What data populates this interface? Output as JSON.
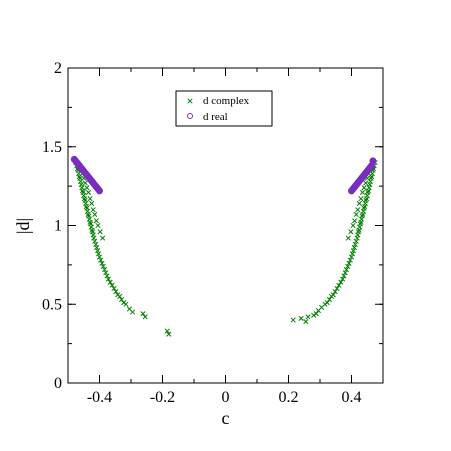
{
  "chart_data": {
    "type": "scatter",
    "xlabel": "c",
    "ylabel": "|d|",
    "xlim": [
      -0.5,
      0.5
    ],
    "ylim": [
      0,
      2
    ],
    "xticks": [
      -0.4,
      -0.2,
      0,
      0.2,
      0.4
    ],
    "xtick_labels": [
      "-0.4",
      "-0.2",
      "0",
      "0.2",
      "0.4"
    ],
    "yticks": [
      0,
      0.5,
      1,
      1.5,
      2
    ],
    "ytick_labels": [
      "0",
      "0.5",
      "1",
      "1.5",
      "2"
    ],
    "legend_position": "top-center",
    "grid": false,
    "series": [
      {
        "name": "d complex",
        "marker": "x",
        "color": "#007f00",
        "x": [
          -0.475,
          -0.472,
          -0.47,
          -0.468,
          -0.466,
          -0.464,
          -0.462,
          -0.46,
          -0.458,
          -0.456,
          -0.454,
          -0.452,
          -0.45,
          -0.448,
          -0.446,
          -0.444,
          -0.442,
          -0.44,
          -0.438,
          -0.436,
          -0.434,
          -0.432,
          -0.43,
          -0.428,
          -0.426,
          -0.424,
          -0.422,
          -0.42,
          -0.418,
          -0.415,
          -0.412,
          -0.409,
          -0.406,
          -0.403,
          -0.4,
          -0.396,
          -0.392,
          -0.388,
          -0.384,
          -0.38,
          -0.376,
          -0.372,
          -0.366,
          -0.36,
          -0.354,
          -0.348,
          -0.342,
          -0.336,
          -0.33,
          -0.323,
          -0.316,
          -0.305,
          -0.295,
          -0.262,
          -0.255,
          -0.185,
          -0.18,
          -0.46,
          -0.455,
          -0.45,
          -0.445,
          -0.44,
          -0.435,
          -0.43,
          -0.425,
          -0.42,
          -0.415,
          -0.41,
          -0.405,
          -0.398,
          -0.39,
          0.475,
          0.472,
          0.47,
          0.468,
          0.466,
          0.464,
          0.462,
          0.46,
          0.458,
          0.456,
          0.454,
          0.452,
          0.45,
          0.448,
          0.446,
          0.444,
          0.442,
          0.44,
          0.438,
          0.436,
          0.434,
          0.432,
          0.43,
          0.428,
          0.426,
          0.424,
          0.422,
          0.42,
          0.418,
          0.415,
          0.412,
          0.409,
          0.406,
          0.403,
          0.4,
          0.396,
          0.392,
          0.388,
          0.384,
          0.38,
          0.376,
          0.372,
          0.366,
          0.36,
          0.354,
          0.348,
          0.342,
          0.336,
          0.33,
          0.323,
          0.316,
          0.305,
          0.295,
          0.288,
          0.28,
          0.262,
          0.255,
          0.24,
          0.215,
          0.46,
          0.455,
          0.45,
          0.445,
          0.44,
          0.435,
          0.43,
          0.425,
          0.42,
          0.415,
          0.41,
          0.405,
          0.398,
          0.39
        ],
        "y": [
          1.4,
          1.38,
          1.36,
          1.35,
          1.33,
          1.31,
          1.3,
          1.28,
          1.26,
          1.24,
          1.22,
          1.21,
          1.19,
          1.17,
          1.16,
          1.14,
          1.12,
          1.11,
          1.09,
          1.07,
          1.06,
          1.04,
          1.02,
          1.01,
          0.99,
          0.97,
          0.96,
          0.94,
          0.92,
          0.9,
          0.88,
          0.86,
          0.84,
          0.82,
          0.8,
          0.78,
          0.76,
          0.74,
          0.72,
          0.7,
          0.68,
          0.66,
          0.64,
          0.62,
          0.6,
          0.58,
          0.56,
          0.55,
          0.53,
          0.51,
          0.5,
          0.47,
          0.45,
          0.44,
          0.42,
          0.33,
          0.31,
          1.36,
          1.33,
          1.3,
          1.27,
          1.24,
          1.21,
          1.17,
          1.14,
          1.1,
          1.07,
          1.03,
          1.0,
          0.96,
          0.92,
          1.4,
          1.38,
          1.36,
          1.35,
          1.33,
          1.31,
          1.3,
          1.28,
          1.26,
          1.24,
          1.22,
          1.21,
          1.19,
          1.17,
          1.16,
          1.14,
          1.12,
          1.11,
          1.09,
          1.07,
          1.06,
          1.04,
          1.02,
          1.01,
          0.99,
          0.97,
          0.96,
          0.94,
          0.92,
          0.9,
          0.88,
          0.86,
          0.84,
          0.82,
          0.8,
          0.78,
          0.76,
          0.74,
          0.72,
          0.7,
          0.68,
          0.66,
          0.64,
          0.62,
          0.6,
          0.58,
          0.56,
          0.55,
          0.53,
          0.51,
          0.5,
          0.48,
          0.46,
          0.44,
          0.43,
          0.42,
          0.39,
          0.41,
          0.4,
          1.36,
          1.33,
          1.3,
          1.27,
          1.24,
          1.21,
          1.17,
          1.14,
          1.1,
          1.07,
          1.03,
          1.0,
          0.96,
          0.92
        ]
      },
      {
        "name": "d real",
        "marker": "o",
        "color": "#7b2fbe",
        "x": [
          -0.48,
          -0.476,
          -0.472,
          -0.468,
          -0.464,
          -0.46,
          -0.456,
          -0.452,
          -0.448,
          -0.444,
          -0.44,
          -0.436,
          -0.432,
          -0.428,
          -0.424,
          -0.42,
          -0.416,
          -0.412,
          -0.408,
          -0.404,
          -0.4,
          0.4,
          0.404,
          0.408,
          0.412,
          0.416,
          0.42,
          0.424,
          0.428,
          0.432,
          0.436,
          0.44,
          0.444,
          0.448,
          0.452,
          0.456,
          0.46,
          0.464,
          0.468
        ],
        "y": [
          1.42,
          1.41,
          1.4,
          1.39,
          1.38,
          1.37,
          1.36,
          1.35,
          1.34,
          1.33,
          1.32,
          1.31,
          1.3,
          1.29,
          1.28,
          1.27,
          1.26,
          1.25,
          1.24,
          1.23,
          1.22,
          1.22,
          1.23,
          1.24,
          1.25,
          1.26,
          1.27,
          1.28,
          1.29,
          1.3,
          1.31,
          1.32,
          1.33,
          1.34,
          1.35,
          1.36,
          1.37,
          1.38,
          1.41
        ]
      }
    ]
  }
}
